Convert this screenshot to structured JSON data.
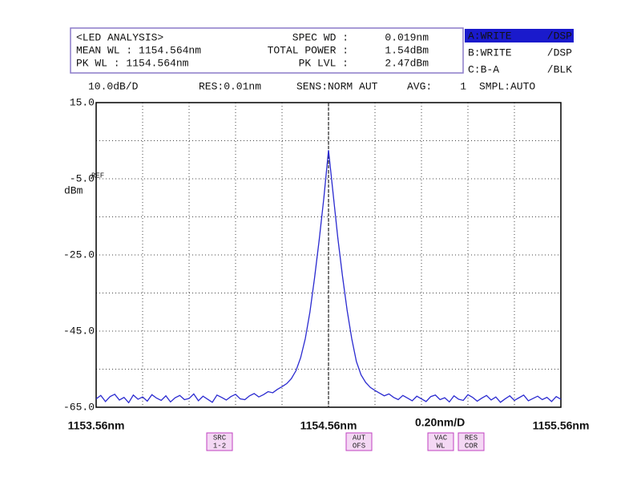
{
  "header": {
    "info_left": [
      "<LED ANALYSIS>",
      "MEAN WL : 1154.564nm",
      "PK WL : 1154.564nm"
    ],
    "info_keys": [
      "SPEC WD :",
      "TOTAL POWER :",
      "PK LVL :"
    ],
    "info_values": [
      "0.019nm",
      "1.54dBm",
      "2.47dBm"
    ],
    "traces": [
      {
        "name": "A:WRITE",
        "mode": "/DSP",
        "color": "#2040ff"
      },
      {
        "name": "B:WRITE",
        "mode": "/DSP",
        "color": "#ff3030"
      },
      {
        "name": "C:B-A",
        "mode": "/BLK",
        "color": "#20c020"
      }
    ],
    "status": [
      "RES:0.01nm",
      "SENS:NORM AUT",
      "AVG:",
      "1",
      "SMPL:AUTO"
    ]
  },
  "buttons": [
    [
      "SRC",
      "1-2"
    ],
    [
      "AUT",
      "OFS"
    ],
    [
      "VAC",
      "WL"
    ],
    [
      "RES",
      "COR"
    ]
  ],
  "chart_data": {
    "type": "line",
    "y_division": {
      "value": 10,
      "label": "10.0dB/D"
    },
    "x_division": {
      "value": 0.2,
      "label": "0.20nm/D"
    },
    "y_axis_label": "dBm",
    "ref_label": "REF",
    "xlim": [
      1153.56,
      1155.56
    ],
    "xticks": [
      {
        "value": 1153.56,
        "label": "1153.56nm"
      },
      {
        "value": 1154.56,
        "label": "1154.56nm"
      },
      {
        "value": 1155.56,
        "label": "1155.56nm"
      }
    ],
    "ylim": [
      -65,
      15
    ],
    "yticks": [
      {
        "value": 15,
        "label": "15.0"
      },
      {
        "value": -5,
        "label": "-5.0"
      },
      {
        "value": -25,
        "label": "-25.0"
      },
      {
        "value": -45,
        "label": "-45.0"
      },
      {
        "value": -65,
        "label": "-65.0"
      }
    ],
    "grid": true,
    "marker_x": 1154.56,
    "x": [
      1153.56,
      1153.58,
      1153.6,
      1153.62,
      1153.64,
      1153.66,
      1153.68,
      1153.7,
      1153.72,
      1153.74,
      1153.76,
      1153.78,
      1153.8,
      1153.82,
      1153.84,
      1153.86,
      1153.88,
      1153.9,
      1153.92,
      1153.94,
      1153.96,
      1153.98,
      1154,
      1154.02,
      1154.04,
      1154.06,
      1154.08,
      1154.1,
      1154.12,
      1154.14,
      1154.16,
      1154.18,
      1154.2,
      1154.22,
      1154.24,
      1154.26,
      1154.28,
      1154.3,
      1154.32,
      1154.34,
      1154.36,
      1154.38,
      1154.4,
      1154.42,
      1154.44,
      1154.46,
      1154.48,
      1154.5,
      1154.52,
      1154.54,
      1154.56,
      1154.58,
      1154.6,
      1154.62,
      1154.64,
      1154.66,
      1154.68,
      1154.7,
      1154.72,
      1154.74,
      1154.76,
      1154.78,
      1154.8,
      1154.82,
      1154.84,
      1154.86,
      1154.88,
      1154.9,
      1154.92,
      1154.94,
      1154.96,
      1154.98,
      1155,
      1155.02,
      1155.04,
      1155.06,
      1155.08,
      1155.1,
      1155.12,
      1155.14,
      1155.16,
      1155.18,
      1155.2,
      1155.22,
      1155.24,
      1155.26,
      1155.28,
      1155.3,
      1155.32,
      1155.34,
      1155.36,
      1155.38,
      1155.4,
      1155.42,
      1155.44,
      1155.46,
      1155.48,
      1155.5,
      1155.52,
      1155.54,
      1155.56
    ],
    "series": [
      {
        "name": "A:WRITE",
        "color": "#2a2ad0",
        "values": [
          -62.8,
          -61.9,
          -63.5,
          -62.2,
          -61.6,
          -63.1,
          -62.4,
          -63.8,
          -61.8,
          -62.9,
          -62.3,
          -63.4,
          -61.7,
          -62.6,
          -63.2,
          -62.0,
          -63.6,
          -62.5,
          -61.9,
          -63.0,
          -62.7,
          -61.5,
          -63.3,
          -62.1,
          -62.9,
          -63.7,
          -61.8,
          -62.4,
          -63.1,
          -62.2,
          -61.6,
          -62.8,
          -63.0,
          -62.0,
          -61.4,
          -62.3,
          -61.7,
          -60.9,
          -61.2,
          -60.3,
          -59.6,
          -58.8,
          -57.5,
          -55.4,
          -52.0,
          -47.0,
          -40.0,
          -31.0,
          -21.0,
          -10.0,
          2.5,
          -9.0,
          -20.5,
          -30.5,
          -39.5,
          -47.0,
          -53.0,
          -56.5,
          -58.5,
          -59.8,
          -60.6,
          -61.3,
          -62.0,
          -61.5,
          -62.4,
          -63.0,
          -61.9,
          -62.6,
          -63.3,
          -62.1,
          -62.8,
          -63.5,
          -62.2,
          -61.8,
          -63.0,
          -62.5,
          -63.6,
          -62.0,
          -62.9,
          -63.2,
          -61.7,
          -62.4,
          -63.4,
          -62.6,
          -61.9,
          -63.1,
          -62.3,
          -63.7,
          -62.8,
          -62.0,
          -63.2,
          -62.5,
          -61.8,
          -63.3,
          -62.7,
          -62.1,
          -63.0,
          -62.4,
          -63.5,
          -62.2,
          -62.9
        ]
      }
    ]
  }
}
